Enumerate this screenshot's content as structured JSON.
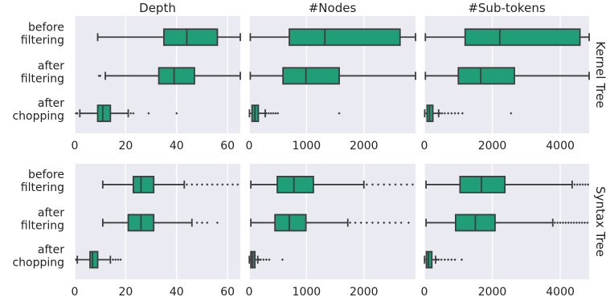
{
  "chart_data": {
    "type": "boxplot",
    "columns": [
      "Depth",
      "#Nodes",
      "#Sub-tokens"
    ],
    "rows": [
      "Kernel Tree",
      "Syntax Tree"
    ],
    "categories": [
      [
        "before",
        "filtering"
      ],
      [
        "after",
        "filtering"
      ],
      [
        "after",
        "chopping"
      ]
    ],
    "x_ticks": [
      [
        0,
        20,
        40,
        60
      ],
      [
        0,
        1000,
        2000
      ],
      [
        0,
        2000,
        4000
      ]
    ],
    "xlim": [
      [
        0,
        65
      ],
      [
        0,
        2900
      ],
      [
        0,
        4850
      ]
    ],
    "grid": true,
    "box_color": "#1f9e78",
    "panel_bg": "#eaeaf2",
    "panels": {
      "Kernel Tree": {
        "Depth": [
          {
            "whisker_low": 9,
            "q1": 35,
            "median": 44,
            "q3": 56,
            "whisker_high": 65,
            "outliers": []
          },
          {
            "whisker_low": 12,
            "q1": 33,
            "median": 39,
            "q3": 47,
            "whisker_high": 65,
            "outliers": [
              9.5,
              10
            ]
          },
          {
            "whisker_low": 2,
            "q1": 9,
            "median": 11,
            "q3": 14,
            "whisker_high": 21,
            "outliers": [
              0.5,
              1,
              22,
              23,
              29,
              40
            ]
          }
        ],
        "#Nodes": [
          {
            "whisker_low": 20,
            "q1": 700,
            "median": 1320,
            "q3": 2630,
            "whisker_high": 2900,
            "outliers": []
          },
          {
            "whisker_low": 20,
            "q1": 590,
            "median": 990,
            "q3": 1570,
            "whisker_high": 2900,
            "outliers": []
          },
          {
            "whisker_low": 5,
            "q1": 50,
            "median": 100,
            "q3": 160,
            "whisker_high": 280,
            "outliers": [
              300,
              340,
              380,
              420,
              460,
              500,
              1570
            ]
          }
        ],
        "#Sub-tokens": [
          {
            "whisker_low": 30,
            "q1": 1200,
            "median": 2220,
            "q3": 4580,
            "whisker_high": 4850,
            "outliers": []
          },
          {
            "whisker_low": 30,
            "q1": 1000,
            "median": 1660,
            "q3": 2650,
            "whisker_high": 4850,
            "outliers": []
          },
          {
            "whisker_low": 10,
            "q1": 80,
            "median": 150,
            "q3": 250,
            "whisker_high": 420,
            "outliers": [
              460,
              520,
              600,
              700,
              800,
              900,
              1000,
              1120,
              2550
            ]
          }
        ]
      },
      "Syntax Tree": {
        "Depth": [
          {
            "whisker_low": 11,
            "q1": 23,
            "median": 26,
            "q3": 31,
            "whisker_high": 43,
            "outliers": [
              44,
              46,
              48,
              50,
              52,
              54,
              56,
              58,
              60,
              62,
              64
            ]
          },
          {
            "whisker_low": 11,
            "q1": 21,
            "median": 26,
            "q3": 31,
            "whisker_high": 46,
            "outliers": [
              48,
              50,
              52,
              56
            ]
          },
          {
            "whisker_low": 1,
            "q1": 6,
            "median": 7,
            "q3": 9,
            "whisker_high": 14,
            "outliers": [
              0.5,
              15,
              16,
              17,
              18
            ]
          }
        ],
        "#Nodes": [
          {
            "whisker_low": 30,
            "q1": 490,
            "median": 780,
            "q3": 1120,
            "whisker_high": 2000,
            "outliers": [
              2050,
              2150,
              2250,
              2350,
              2450,
              2550,
              2650,
              2750,
              2850
            ]
          },
          {
            "whisker_low": 30,
            "q1": 450,
            "median": 700,
            "q3": 990,
            "whisker_high": 1720,
            "outliers": [
              1760,
              1850,
              1950,
              2050,
              2150,
              2250,
              2350,
              2450,
              2550,
              2650,
              2780
            ]
          },
          {
            "whisker_low": 3,
            "q1": 30,
            "median": 60,
            "q3": 100,
            "whisker_high": 150,
            "outliers": [
              170,
              200,
              250,
              300,
              350,
              580
            ]
          }
        ],
        "#Sub-tokens": [
          {
            "whisker_low": 50,
            "q1": 1050,
            "median": 1680,
            "q3": 2370,
            "whisker_high": 4350,
            "outliers": [
              4420,
              4500,
              4580,
              4660,
              4740,
              4820
            ]
          },
          {
            "whisker_low": 50,
            "q1": 920,
            "median": 1500,
            "q3": 2080,
            "whisker_high": 3780,
            "outliers": [
              3840,
              3920,
              4000,
              4080,
              4160,
              4240,
              4320,
              4400,
              4480,
              4560,
              4640,
              4720,
              4800
            ]
          },
          {
            "whisker_low": 5,
            "q1": 60,
            "median": 120,
            "q3": 220,
            "whisker_high": 330,
            "outliers": [
              370,
              420,
              500,
              600,
              700,
              800,
              900,
              1100
            ]
          }
        ]
      }
    }
  }
}
